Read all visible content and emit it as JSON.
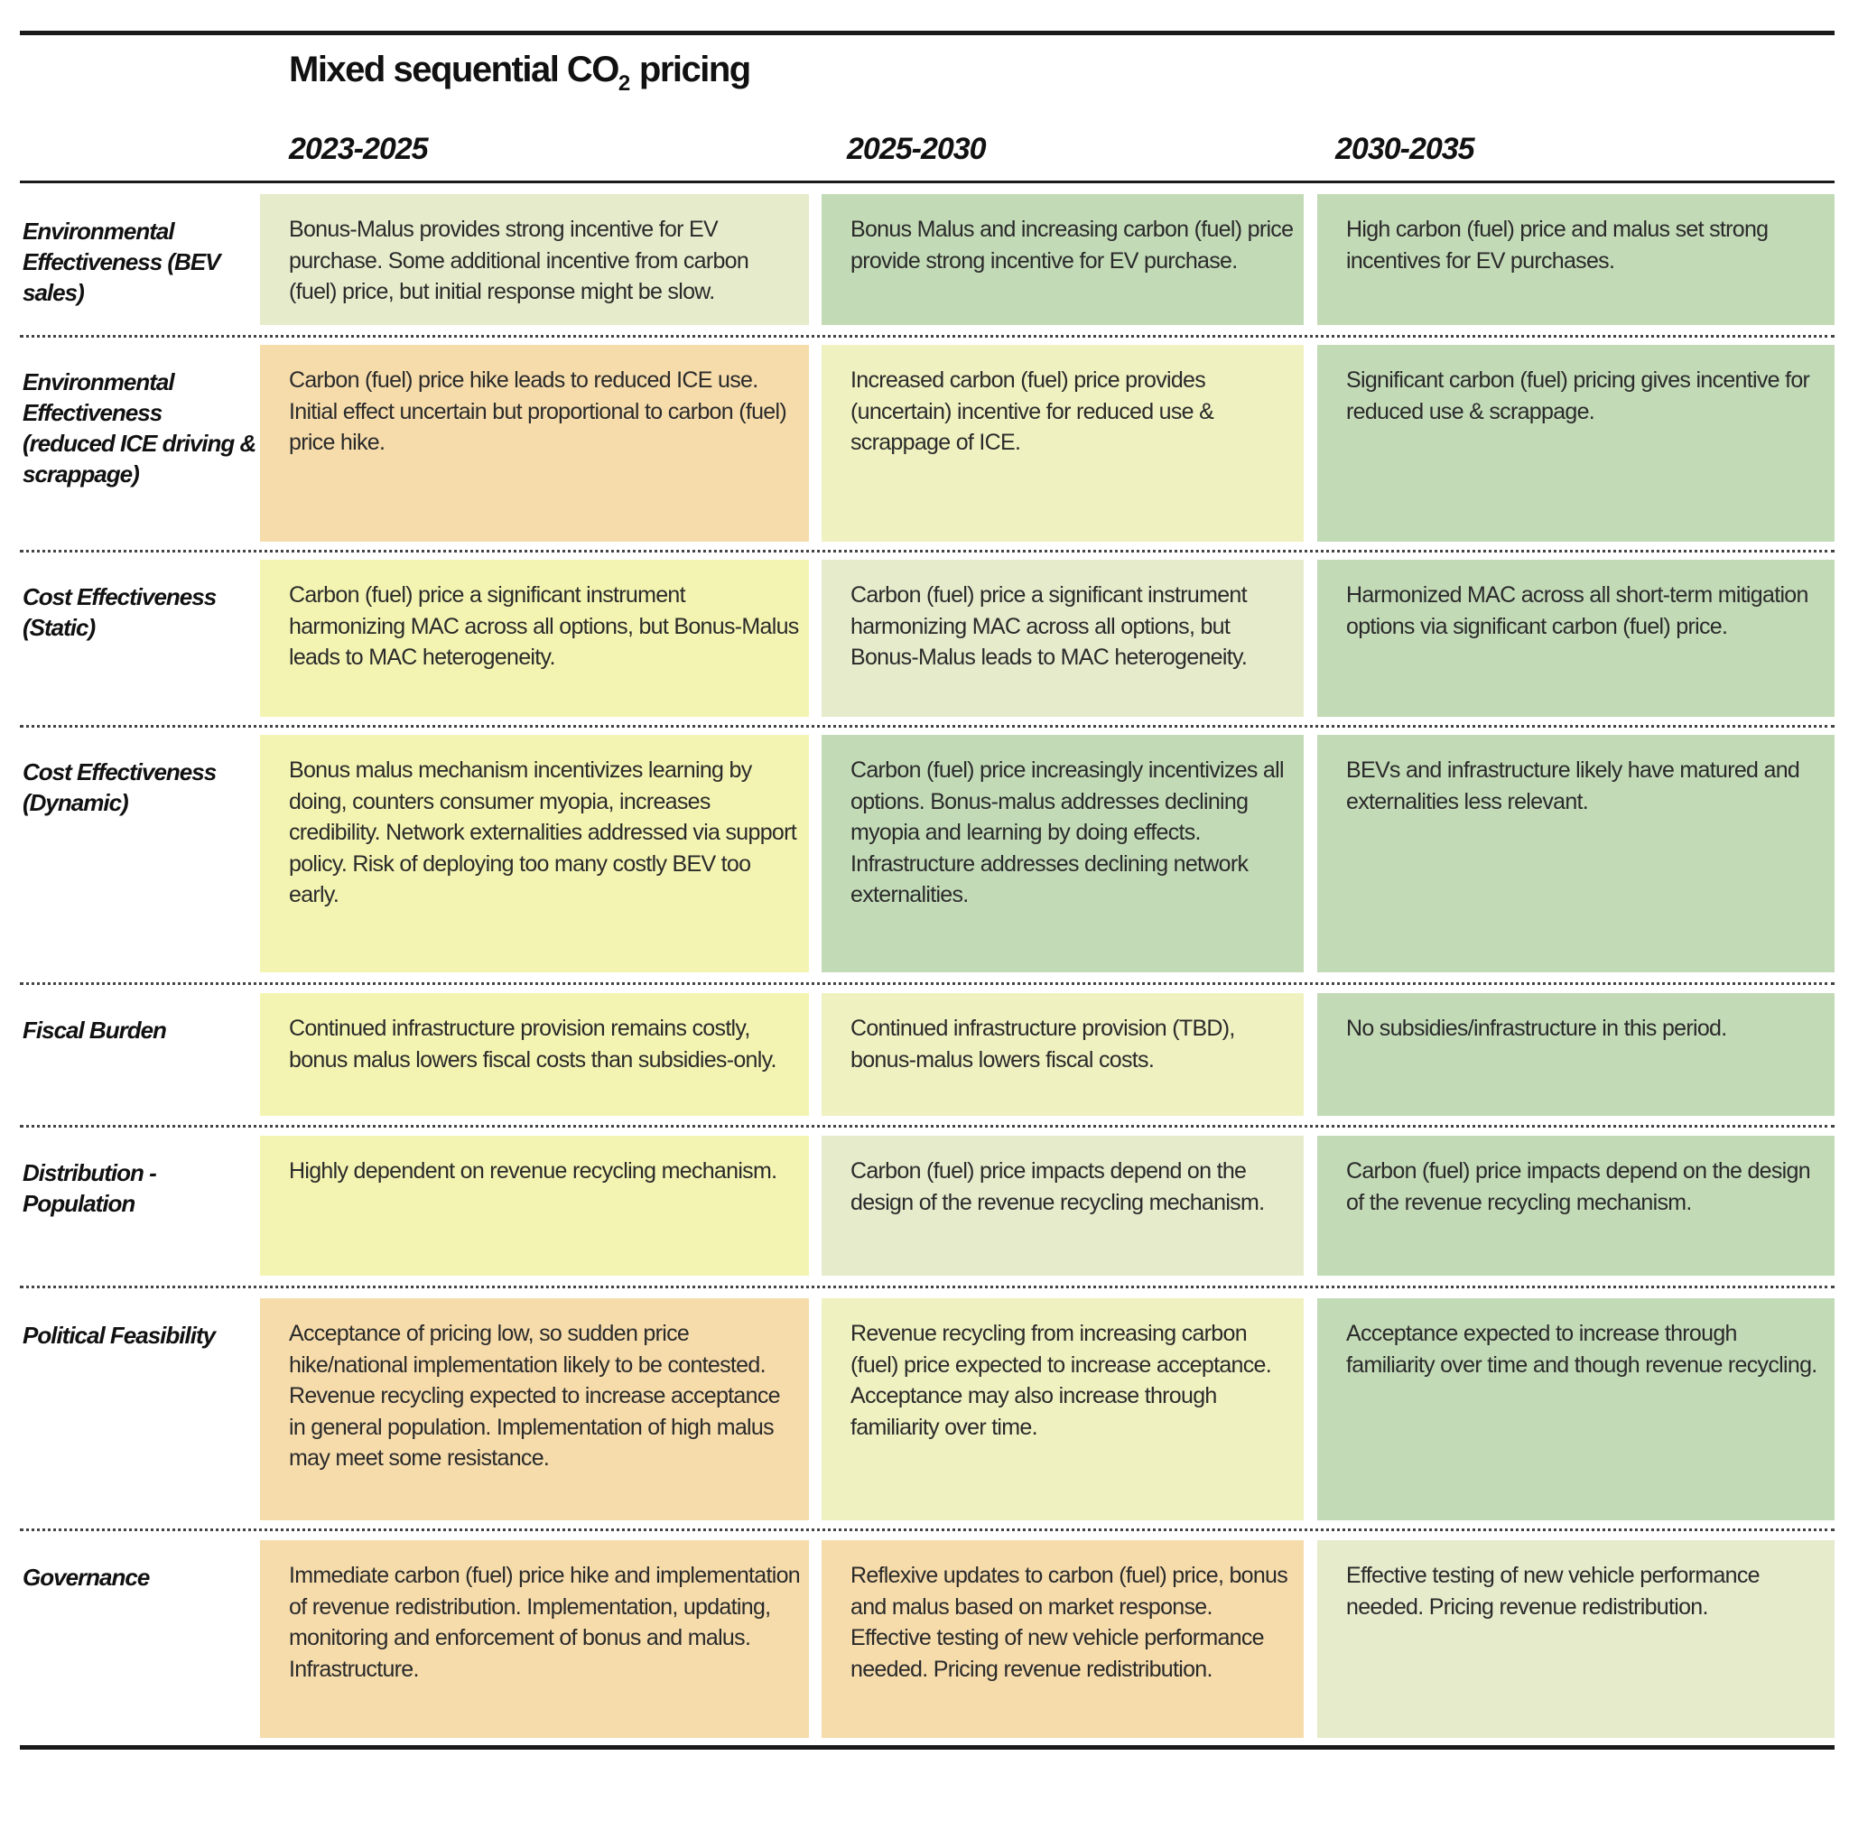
{
  "title": {
    "main": "Mixed sequential CO",
    "sub": "2",
    "tail": " pricing"
  },
  "columns": [
    "2023-2025",
    "2025-2030",
    "2030-2035"
  ],
  "colors": {
    "orange": "#f6dcab",
    "yellow": "#f4f4b2",
    "light_yellow": "#eff1c0",
    "pale_green": "#e5ebcb",
    "green": "#c3dab7"
  },
  "rows": [
    {
      "label": "Environmental Effectiveness (BEV sales)",
      "cells": [
        {
          "text": "Bonus-Malus provides strong incentive for EV purchase. Some additional incentive from carbon (fuel) price, but initial response might be slow.",
          "color": "pale_green"
        },
        {
          "text": "Bonus Malus and increasing carbon (fuel) price provide strong incentive for EV purchase.",
          "color": "green"
        },
        {
          "text": "High carbon (fuel) price and malus set strong incentives for EV purchases.",
          "color": "green"
        }
      ]
    },
    {
      "label": "Environmental Effectiveness (reduced ICE driving & scrappage)",
      "cells": [
        {
          "text": "Carbon (fuel) price hike leads to reduced ICE use. Initial effect uncertain but proportional to carbon (fuel) price hike.",
          "color": "orange"
        },
        {
          "text": "Increased carbon (fuel) price provides (uncertain) incentive for reduced use & scrappage of ICE.",
          "color": "light_yellow"
        },
        {
          "text": "Significant carbon (fuel) pricing gives incentive for reduced use & scrappage.",
          "color": "green"
        }
      ]
    },
    {
      "label": "Cost Effectiveness (Static)",
      "cells": [
        {
          "text": "Carbon (fuel) price a significant instrument harmonizing MAC across all options, but Bonus-Malus leads to MAC heterogeneity.",
          "color": "yellow"
        },
        {
          "text": "Carbon (fuel) price a significant instrument harmonizing MAC across all options, but Bonus-Malus leads to MAC heterogeneity.",
          "color": "pale_green"
        },
        {
          "text": "Harmonized MAC across all short-term mitigation options via significant carbon (fuel) price.",
          "color": "green"
        }
      ]
    },
    {
      "label": "Cost Effectiveness (Dynamic)",
      "cells": [
        {
          "text": "Bonus malus mechanism incentivizes learning by doing, counters consumer myopia, increases credibility. Network externalities addressed via support policy. Risk of deploying too many costly BEV too early.",
          "color": "yellow"
        },
        {
          "text": "Carbon (fuel) price increasingly incentivizes all options. Bonus-malus addresses declining myopia and learning by doing effects. Infrastructure addresses declining network externalities.",
          "color": "green"
        },
        {
          "text": "BEVs and infrastructure likely have matured and externalities less relevant.",
          "color": "green"
        }
      ]
    },
    {
      "label": "Fiscal Burden",
      "cells": [
        {
          "text": "Continued infrastructure provision remains costly, bonus malus lowers fiscal costs than subsidies-only.",
          "color": "yellow"
        },
        {
          "text": "Continued infrastructure provision (TBD), bonus-malus lowers fiscal costs.",
          "color": "light_yellow"
        },
        {
          "text": "No subsidies/infrastructure in this period.",
          "color": "green"
        }
      ]
    },
    {
      "label": "Distribution - Population",
      "cells": [
        {
          "text": " Highly dependent on revenue recycling mechanism.",
          "color": "yellow"
        },
        {
          "text": "Carbon (fuel) price impacts depend on the design of the revenue recycling  mechanism.",
          "color": "pale_green"
        },
        {
          "text": "Carbon (fuel) price impacts depend on the design of the revenue recycling mechanism.",
          "color": "green"
        }
      ]
    },
    {
      "label": "Political Feasibility",
      "cells": [
        {
          "text": "Acceptance of pricing low, so sudden price hike/national implementation likely to be contested. Revenue recycling expected to increase acceptance in general population. Implementation of high malus may meet some resistance.",
          "color": "orange"
        },
        {
          "text": "Revenue recycling from increasing carbon (fuel) price expected to increase acceptance. Acceptance may also increase through familiarity over time.",
          "color": "light_yellow"
        },
        {
          "text": "Acceptance expected to increase through familiarity over time and though revenue recycling.",
          "color": "green"
        }
      ]
    },
    {
      "label": "Governance",
      "cells": [
        {
          "text": "Immediate carbon (fuel) price hike and implementation of revenue redistribution. Implementation, updating, monitoring and enforcement of bonus and malus. Infrastructure.",
          "color": "orange"
        },
        {
          "text": "Reflexive updates to carbon (fuel) price, bonus and malus based on market response. Effective testing of new vehicle performance needed. Pricing revenue redistribution.",
          "color": "orange"
        },
        {
          "text": "Effective testing of new vehicle performance needed. Pricing revenue redistribution.",
          "color": "pale_green"
        }
      ]
    }
  ]
}
